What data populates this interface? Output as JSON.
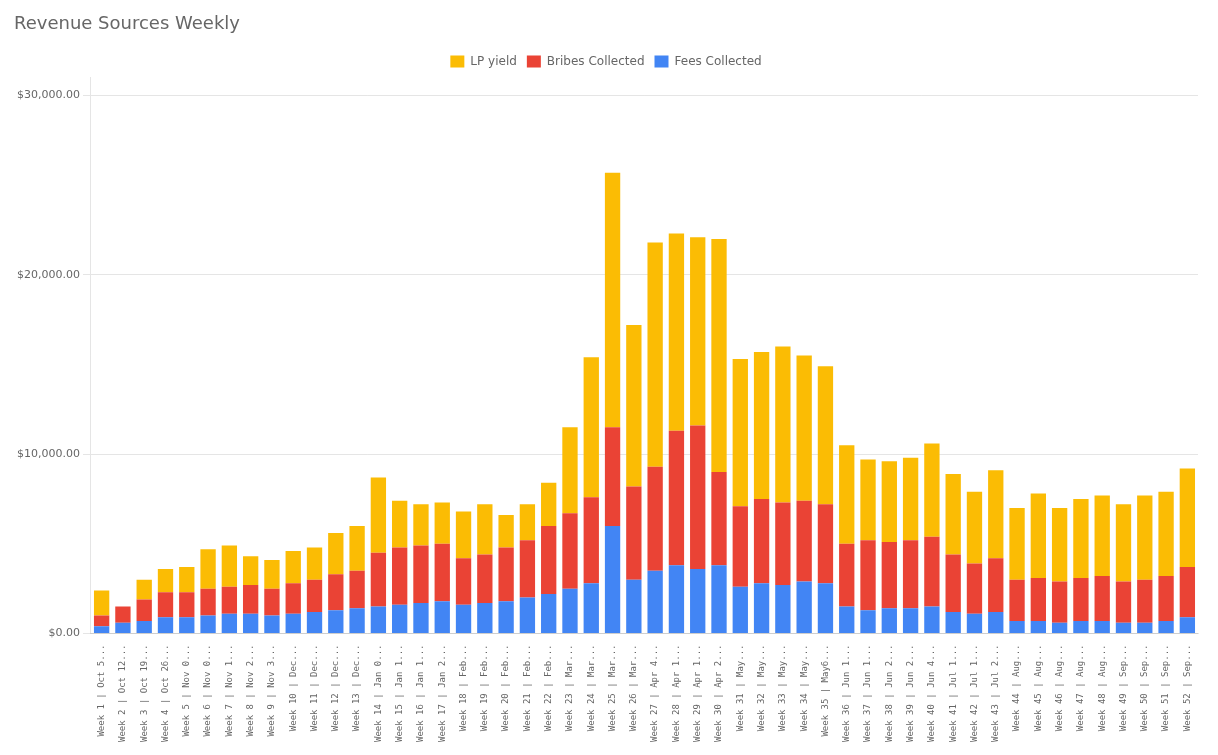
{
  "chart_data": {
    "type": "bar",
    "title": "Revenue Sources Weekly",
    "stacked": true,
    "grid": true,
    "legend": "top",
    "categories": [
      "Week 1 | Oct 5...",
      "Week 2 | Oct 12...",
      "Week 3 | Oct 19...",
      "Week 4 | Oct 26...",
      "Week 5 | Nov 0...",
      "Week 6 | Nov 0...",
      "Week 7 | Nov 1...",
      "Week 8 | Nov 2...",
      "Week 9 | Nov 3...",
      "Week 10 | Dec...",
      "Week 11 | Dec...",
      "Week 12 | Dec...",
      "Week 13 | Dec...",
      "Week 14 | Jan 0...",
      "Week 15 | Jan 1...",
      "Week 16 | Jan 1...",
      "Week 17 | Jan 2...",
      "Week 18 | Feb...",
      "Week 19 | Feb...",
      "Week 20 | Feb...",
      "Week 21 | Feb...",
      "Week 22 | Feb...",
      "Week 23 | Mar...",
      "Week 24 | Mar...",
      "Week 25 | Mar...",
      "Week 26 | Mar...",
      "Week 27 | Apr 4...",
      "Week 28 | Apr 1...",
      "Week 29 | Apr 1...",
      "Week 30 | Apr 2...",
      "Week 31 | May...",
      "Week 32 | May...",
      "Week 33 | May...",
      "Week 34 | May...",
      "Week 35 | May6...",
      "Week 36 | Jun 1...",
      "Week 37 | Jun 1...",
      "Week 38 | Jun 2...",
      "Week 39 | Jun 2...",
      "Week 40 | Jun 4...",
      "Week 41 | Jul 1...",
      "Week 42 | Jul 1...",
      "Week 43 | Jul 2...",
      "Week 44 | Aug...",
      "Week 45 | Aug...",
      "Week 46 | Aug...",
      "Week 47 | Aug...",
      "Week 48 | Aug...",
      "Week 49 | Sep...",
      "Week 50 | Sep...",
      "Week 51 | Sep...",
      "Week 52 | Sep..."
    ],
    "series": [
      {
        "name": "Fees Collected",
        "color": "#4285F4",
        "values": [
          400,
          600,
          700,
          900,
          900,
          1000,
          1100,
          1100,
          1000,
          1100,
          1200,
          1300,
          1400,
          1500,
          1600,
          1700,
          1800,
          1600,
          1700,
          1800,
          2000,
          2200,
          2500,
          2800,
          6000,
          3000,
          3500,
          3800,
          3600,
          3800,
          2600,
          2800,
          2700,
          2900,
          2800,
          1500,
          1300,
          1400,
          1400,
          1500,
          1200,
          1100,
          1200,
          700,
          700,
          600,
          700,
          700,
          600,
          600,
          700,
          900
        ]
      },
      {
        "name": "Bribes Collected",
        "color": "#EA4335",
        "values": [
          600,
          900,
          1200,
          1400,
          1400,
          1500,
          1500,
          1600,
          1500,
          1700,
          1800,
          2000,
          2100,
          3000,
          3200,
          3200,
          3200,
          2600,
          2700,
          3000,
          3200,
          3800,
          4200,
          4800,
          5500,
          5200,
          5800,
          7500,
          8000,
          5200,
          4500,
          4700,
          4600,
          4500,
          4400,
          3500,
          3900,
          3700,
          3800,
          3900,
          3200,
          2800,
          3000,
          2300,
          2400,
          2300,
          2400,
          2500,
          2300,
          2400,
          2500,
          2800
        ]
      },
      {
        "name": "LP yield",
        "color": "#FBBC04",
        "values": [
          1400,
          0,
          1100,
          1300,
          1400,
          2200,
          2300,
          1600,
          1600,
          1800,
          1800,
          2300,
          2500,
          4200,
          2600,
          2300,
          2300,
          2600,
          2800,
          1800,
          2000,
          2400,
          4800,
          7800,
          14200,
          9000,
          12500,
          11000,
          10500,
          13000,
          8200,
          8200,
          8700,
          8100,
          7700,
          5500,
          4500,
          4500,
          4600,
          5200,
          4500,
          4000,
          4900,
          4000,
          4700,
          4100,
          4400,
          4500,
          4300,
          4700,
          4700,
          5500
        ]
      }
    ],
    "ylim": [
      0,
      31000
    ],
    "yticks": [
      {
        "value": 0,
        "label": "$0.00"
      },
      {
        "value": 10000,
        "label": "$10,000.00"
      },
      {
        "value": 20000,
        "label": "$20,000.00"
      },
      {
        "value": 30000,
        "label": "$30,000.00"
      }
    ]
  }
}
